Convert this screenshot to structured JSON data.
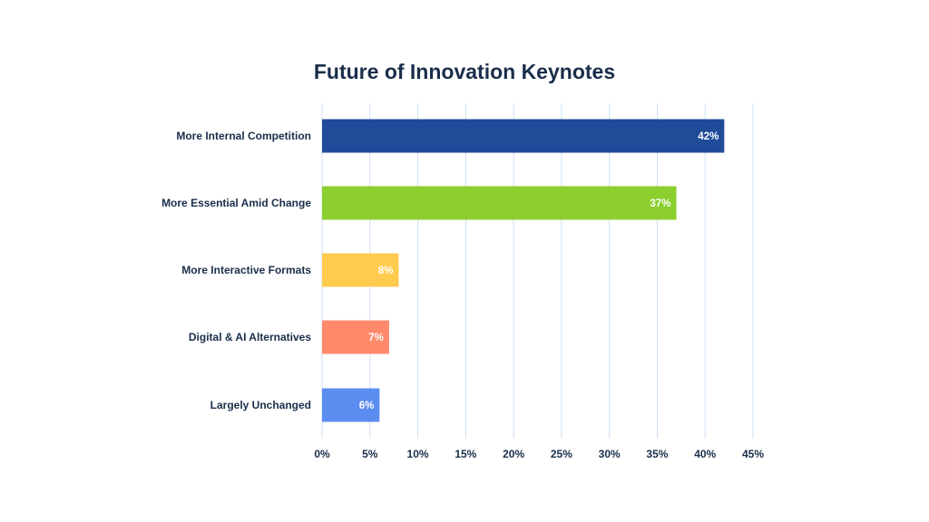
{
  "chart_data": {
    "type": "bar",
    "orientation": "horizontal",
    "title": "Future of Innovation Keynotes",
    "xlabel": "",
    "ylabel": "",
    "categories": [
      "More Internal Competition",
      "More Essential Amid Change",
      "More Interactive Formats",
      "Digital & AI Alternatives",
      "Largely Unchanged"
    ],
    "values": [
      42,
      37,
      8,
      7,
      6
    ],
    "data_labels": [
      "42%",
      "37%",
      "8%",
      "7%",
      "6%"
    ],
    "colors": [
      "#1f4b99",
      "#8ccf2e",
      "#ffcb4f",
      "#ff8a6b",
      "#5b8cf0"
    ],
    "xlim": [
      0,
      45
    ],
    "xticks": [
      0,
      5,
      10,
      15,
      20,
      25,
      30,
      35,
      40,
      45
    ],
    "xtick_labels": [
      "0%",
      "5%",
      "10%",
      "15%",
      "20%",
      "25%",
      "30%",
      "35%",
      "40%",
      "45%"
    ],
    "grid": "vertical",
    "grid_color": "#cfe0f0",
    "text_color": "#1a2e4a",
    "legend": "none"
  }
}
